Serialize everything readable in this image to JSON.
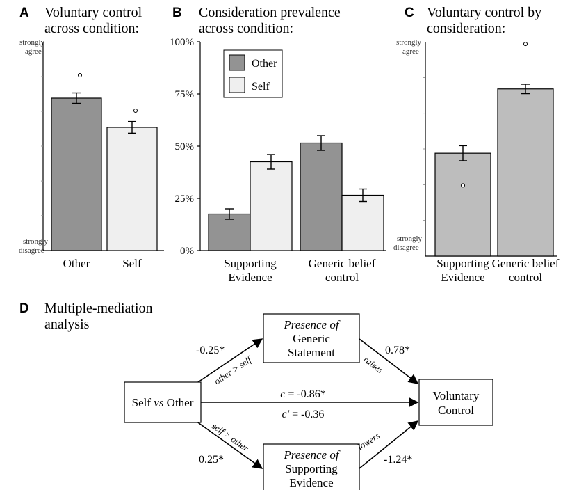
{
  "colors": {
    "other": "#939393",
    "self": "#efefef",
    "consideration": "#bdbdbd",
    "axis": "#000000"
  },
  "chart_data": [
    {
      "panel": "A",
      "type": "bar",
      "title_lines": [
        "Voluntary control",
        "across condition:"
      ],
      "categories": [
        "Other",
        "Self"
      ],
      "values": [
        0.73,
        0.59
      ],
      "errors": [
        0.025,
        0.028
      ],
      "points": [
        0.84,
        0.67
      ],
      "ylim": [
        0,
        1
      ],
      "y_top_label": [
        "strongly",
        "agree"
      ],
      "y_bottom_label": [
        "strongly",
        "disagree"
      ]
    },
    {
      "panel": "B",
      "type": "bar",
      "title_lines": [
        "Consideration prevalence",
        "across condition:"
      ],
      "categories": [
        [
          "Supporting",
          "Evidence"
        ],
        [
          "Generic belief",
          "control"
        ]
      ],
      "series": [
        {
          "name": "Other",
          "values": [
            17.5,
            51.5
          ],
          "errors": [
            2.5,
            3.5
          ]
        },
        {
          "name": "Self",
          "values": [
            42.5,
            26.5
          ],
          "errors": [
            3.5,
            3.0
          ]
        }
      ],
      "ylim": [
        0,
        100
      ],
      "yticks": [
        "0%",
        "25%",
        "50%",
        "75%",
        "100%"
      ],
      "legend": "top-left"
    },
    {
      "panel": "C",
      "type": "bar",
      "title_lines": [
        "Voluntary control by",
        "consideration:"
      ],
      "categories": [
        [
          "Supporting",
          "Evidence"
        ],
        [
          "Generic belief",
          "control"
        ]
      ],
      "values": [
        0.48,
        0.78
      ],
      "errors": [
        0.035,
        0.022
      ],
      "points": [
        0.33,
        0.99
      ],
      "ylim": [
        0,
        1
      ],
      "y_top_label": [
        "strongly",
        "agree"
      ],
      "y_bottom_label": [
        "strongly",
        "disagree"
      ]
    }
  ],
  "mediation": {
    "panel": "D",
    "title_lines": [
      "Multiple-mediation",
      "analysis"
    ],
    "nodes": {
      "source": [
        "Self ",
        "vs",
        " Other"
      ],
      "mediator_top": [
        "Presence of",
        "Generic",
        "Statement"
      ],
      "mediator_bottom": [
        "Presence of",
        "Supporting",
        "Evidence"
      ],
      "outcome": [
        "Voluntary",
        "Control"
      ]
    },
    "paths": {
      "a1": {
        "coef": "-0.25*",
        "label": "other > self"
      },
      "b1": {
        "coef": "0.78*",
        "label": "raises"
      },
      "a2": {
        "coef": "0.25*",
        "label": "self > other"
      },
      "b2": {
        "coef": "-1.24*",
        "label": "lowers"
      },
      "c_total": {
        "prefix": "c",
        "value": " = -0.86*"
      },
      "c_direct": {
        "prefix": "c'",
        "value": " = -0.36"
      }
    }
  }
}
